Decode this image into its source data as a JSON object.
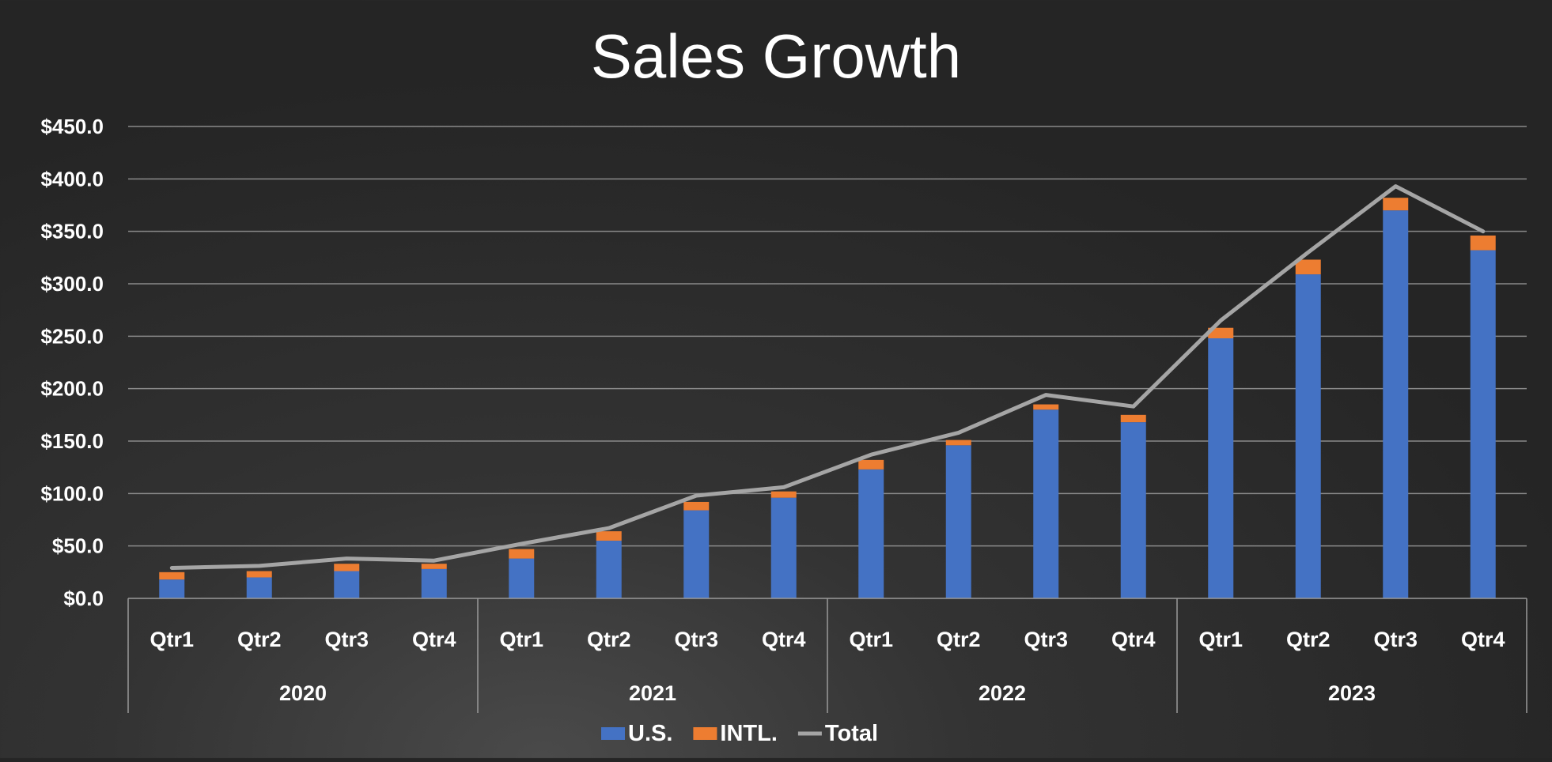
{
  "chart_data": {
    "type": "bar",
    "stacked": true,
    "title": "Sales Growth",
    "ylim": [
      0,
      450
    ],
    "ytick_values": [
      0,
      50,
      100,
      150,
      200,
      250,
      300,
      350,
      400,
      450
    ],
    "ytick_labels": [
      "$0.0",
      "$50.0",
      "$100.0",
      "$150.0",
      "$200.0",
      "$250.0",
      "$300.0",
      "$350.0",
      "$400.0",
      "$450.0"
    ],
    "grid": true,
    "legend_position": "bottom",
    "categories": [
      "Qtr1",
      "Qtr2",
      "Qtr3",
      "Qtr4",
      "Qtr1",
      "Qtr2",
      "Qtr3",
      "Qtr4",
      "Qtr1",
      "Qtr2",
      "Qtr3",
      "Qtr4",
      "Qtr1",
      "Qtr2",
      "Qtr3",
      "Qtr4"
    ],
    "groups": [
      {
        "label": "2020",
        "count": 4
      },
      {
        "label": "2021",
        "count": 4
      },
      {
        "label": "2022",
        "count": 4
      },
      {
        "label": "2023",
        "count": 4
      }
    ],
    "series": [
      {
        "name": "U.S.",
        "type": "bar",
        "color": "#4472C4",
        "values": [
          18,
          20,
          26,
          28,
          38,
          55,
          84,
          96,
          123,
          146,
          180,
          168,
          248,
          309,
          370,
          332
        ]
      },
      {
        "name": "INTL.",
        "type": "bar",
        "color": "#ED7D31",
        "values": [
          7,
          6,
          7,
          5,
          9,
          9,
          8,
          6,
          9,
          5,
          5,
          7,
          10,
          14,
          12,
          14
        ]
      },
      {
        "name": "Total",
        "type": "line",
        "color": "#A5A5A5",
        "values": [
          29,
          31,
          38,
          36,
          52,
          67,
          98,
          106,
          137,
          158,
          194,
          183,
          265,
          330,
          393,
          350
        ]
      }
    ]
  }
}
